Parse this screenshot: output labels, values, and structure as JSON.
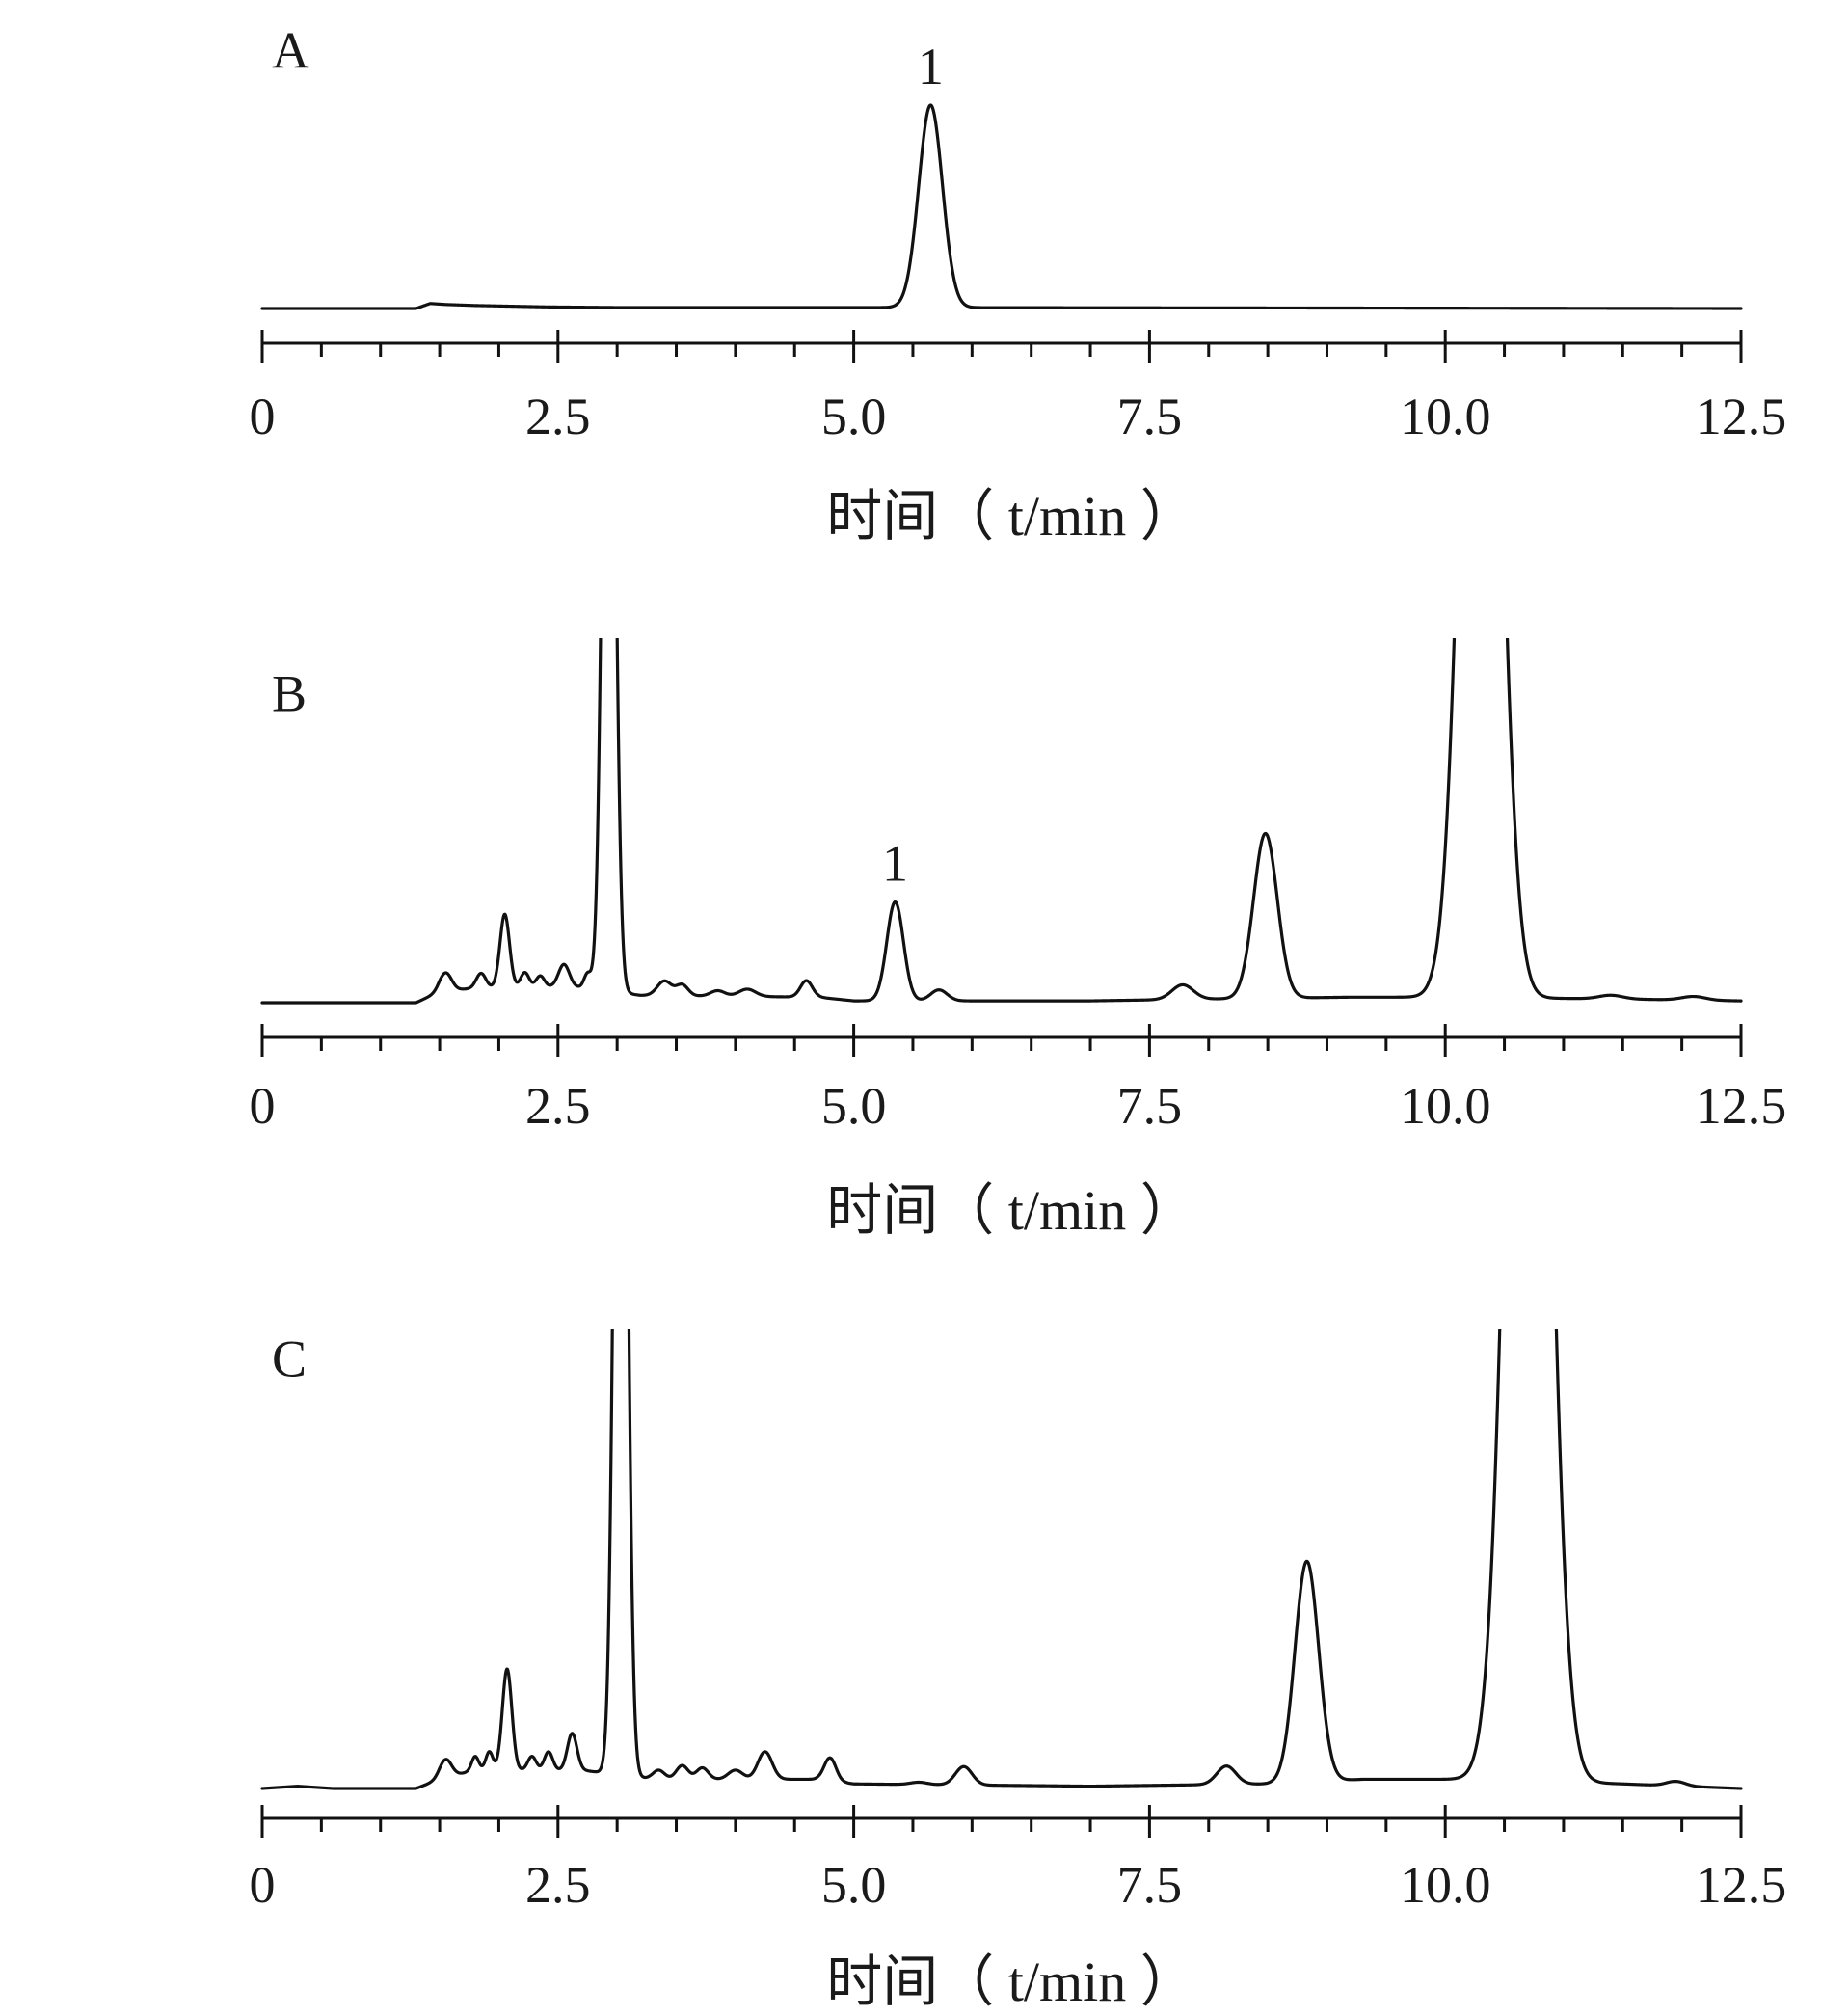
{
  "chart_data": [
    {
      "type": "line",
      "panel_label": "A",
      "xlabel": "时间（ t/min ）",
      "xlim": [
        0,
        12.5
      ],
      "x_ticks": [
        "0",
        "2.5",
        "5.0",
        "7.5",
        "10.0",
        "12.5"
      ],
      "minor_tick_step": 0.5,
      "peak_labels": [
        {
          "text": "1",
          "x": 5.65
        }
      ],
      "baseline": [
        [
          0,
          0
        ],
        [
          1.3,
          0
        ],
        [
          1.42,
          0.025
        ],
        [
          1.55,
          0.02
        ],
        [
          1.8,
          0.015
        ],
        [
          2.4,
          0.008
        ],
        [
          3.0,
          0.005
        ],
        [
          5.3,
          0.005
        ],
        [
          12.5,
          0.0
        ]
      ],
      "peaks": [
        [
          5.65,
          1.0,
          0.1
        ]
      ]
    },
    {
      "type": "line",
      "panel_label": "B",
      "xlabel": "时间（ t/min ）",
      "xlim": [
        0,
        12.5
      ],
      "x_ticks": [
        "0",
        "2.5",
        "5.0",
        "7.5",
        "10.0",
        "12.5"
      ],
      "minor_tick_step": 0.5,
      "peak_labels": [
        {
          "text": "1",
          "x": 5.35
        }
      ],
      "baseline": [
        [
          0,
          0
        ],
        [
          1.3,
          0
        ],
        [
          1.5,
          0.03
        ],
        [
          1.8,
          0.04
        ],
        [
          2.6,
          0.045
        ],
        [
          3.2,
          0.02
        ],
        [
          4.7,
          0.015
        ],
        [
          5.0,
          0.005
        ],
        [
          7.0,
          0.005
        ],
        [
          8.0,
          0.01
        ],
        [
          9.2,
          0.015
        ],
        [
          10.0,
          0.015
        ],
        [
          11.5,
          0.01
        ],
        [
          12.5,
          0.005
        ]
      ],
      "peaks": [
        [
          1.55,
          0.05,
          0.05
        ],
        [
          1.85,
          0.04,
          0.04
        ],
        [
          2.05,
          0.2,
          0.04
        ],
        [
          2.22,
          0.04,
          0.035
        ],
        [
          2.35,
          0.03,
          0.035
        ],
        [
          2.55,
          0.06,
          0.045
        ],
        [
          2.75,
          0.04,
          0.03
        ],
        [
          2.93,
          2.6,
          0.05
        ],
        [
          3.4,
          0.04,
          0.06
        ],
        [
          3.55,
          0.03,
          0.05
        ],
        [
          3.85,
          0.015,
          0.06
        ],
        [
          4.1,
          0.02,
          0.07
        ],
        [
          4.6,
          0.045,
          0.05
        ],
        [
          5.35,
          0.27,
          0.07
        ],
        [
          5.72,
          0.03,
          0.07
        ],
        [
          7.78,
          0.04,
          0.09
        ],
        [
          8.48,
          0.45,
          0.1
        ],
        [
          10.3,
          3.0,
          0.15
        ],
        [
          11.4,
          0.01,
          0.1
        ],
        [
          12.1,
          0.01,
          0.1
        ]
      ]
    },
    {
      "type": "line",
      "panel_label": "C",
      "xlabel": "时间（ t/min ）",
      "xlim": [
        0,
        12.5
      ],
      "x_ticks": [
        "0",
        "2.5",
        "5.0",
        "7.5",
        "10.0",
        "12.5"
      ],
      "minor_tick_step": 0.5,
      "peak_labels": [],
      "baseline": [
        [
          0,
          0
        ],
        [
          0.3,
          0.005
        ],
        [
          0.6,
          0
        ],
        [
          1.3,
          0
        ],
        [
          1.5,
          0.02
        ],
        [
          1.8,
          0.04
        ],
        [
          2.7,
          0.04
        ],
        [
          3.3,
          0.02
        ],
        [
          4.7,
          0.02
        ],
        [
          5.0,
          0.01
        ],
        [
          7.0,
          0.005
        ],
        [
          8.5,
          0.01
        ],
        [
          9.3,
          0.02
        ],
        [
          10.3,
          0.02
        ],
        [
          11.5,
          0.01
        ],
        [
          12.5,
          0.0
        ]
      ],
      "peaks": [
        [
          1.55,
          0.04,
          0.05
        ],
        [
          1.8,
          0.03,
          0.03
        ],
        [
          1.92,
          0.04,
          0.03
        ],
        [
          2.07,
          0.22,
          0.04
        ],
        [
          2.28,
          0.03,
          0.035
        ],
        [
          2.42,
          0.04,
          0.035
        ],
        [
          2.62,
          0.08,
          0.04
        ],
        [
          3.03,
          2.6,
          0.05
        ],
        [
          3.35,
          0.02,
          0.05
        ],
        [
          3.55,
          0.03,
          0.05
        ],
        [
          3.72,
          0.025,
          0.05
        ],
        [
          4.0,
          0.02,
          0.06
        ],
        [
          4.25,
          0.06,
          0.06
        ],
        [
          4.8,
          0.05,
          0.05
        ],
        [
          5.55,
          0.005,
          0.07
        ],
        [
          5.93,
          0.04,
          0.07
        ],
        [
          8.15,
          0.04,
          0.08
        ],
        [
          8.83,
          0.48,
          0.1
        ],
        [
          10.7,
          3.0,
          0.16
        ],
        [
          11.95,
          0.01,
          0.08
        ]
      ]
    }
  ]
}
